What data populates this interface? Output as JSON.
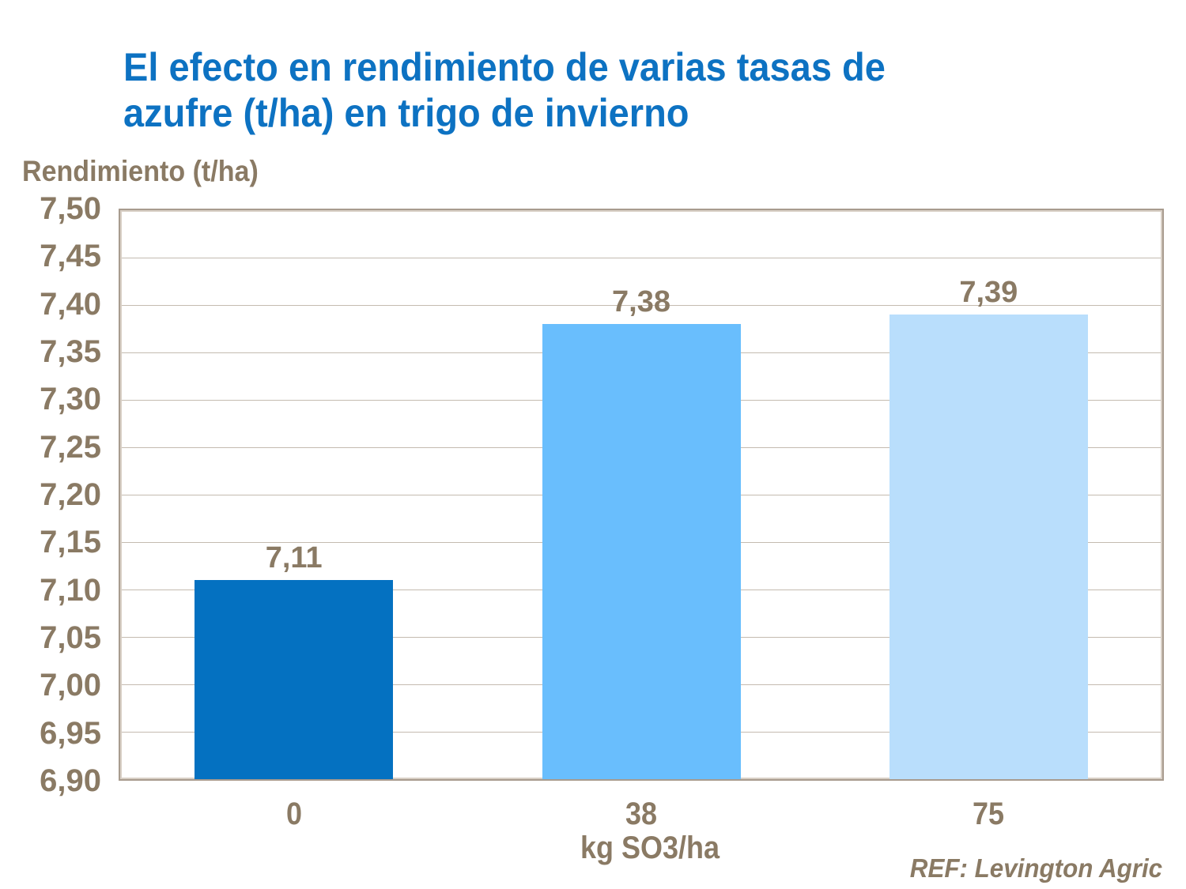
{
  "title": {
    "line1": "El efecto en rendimiento de varias tasas de",
    "line2": "azufre (t/ha) en trigo de invierno"
  },
  "chart_data": {
    "type": "bar",
    "title": "El efecto en rendimiento de varias tasas de azufre (t/ha) en trigo de invierno",
    "ylabel": "Rendimiento (t/ha)",
    "xlabel": "kg SO3/ha",
    "categories": [
      "0",
      "38",
      "75"
    ],
    "values": [
      7.11,
      7.38,
      7.39
    ],
    "value_labels": [
      "7,11",
      "7,38",
      "7,39"
    ],
    "bar_colors": [
      "#0471c1",
      "#69befd",
      "#b9defc"
    ],
    "ylim": [
      6.9,
      7.5
    ],
    "ytick_step": 0.05,
    "ytick_labels": [
      "7,50",
      "7,45",
      "7,40",
      "7,35",
      "7,30",
      "7,25",
      "7,20",
      "7,15",
      "7,10",
      "7,05",
      "7,00",
      "6,95",
      "6,90"
    ],
    "grid": true,
    "legend": "none",
    "annotation": "REF: Levington Agric"
  },
  "colors": {
    "title_blue": "#0d72c2",
    "text_brown": "#8a7a64",
    "plot_border_outer": "#a89b8e",
    "plot_border_inner": "#d8cfc5",
    "gridline": "#c4bbb0",
    "background": "#ffffff"
  }
}
